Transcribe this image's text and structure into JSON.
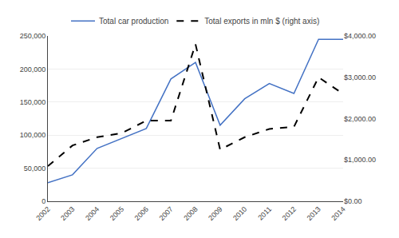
{
  "chart_data": {
    "type": "line",
    "x": [
      2002,
      2003,
      2004,
      2005,
      2006,
      2007,
      2008,
      2009,
      2010,
      2011,
      2012,
      2013,
      2014
    ],
    "xlim": [
      2002,
      2014
    ],
    "xticks": [
      2002,
      2003,
      2004,
      2005,
      2006,
      2007,
      2008,
      2009,
      2010,
      2011,
      2012,
      2013,
      2014
    ],
    "series": [
      {
        "name": "Total car production",
        "color": "#4472C4",
        "line_style": "solid",
        "values": [
          28000,
          40000,
          80000,
          95000,
          110000,
          185000,
          210000,
          115000,
          155000,
          178000,
          163000,
          245000,
          245000
        ]
      },
      {
        "name": "Total exports in mln $ (right axis)",
        "color": "#000000",
        "line_style": "dashed",
        "axis": "y2",
        "values": [
          850,
          1350,
          1550,
          1650,
          1950,
          1950,
          3800,
          1250,
          1550,
          1750,
          1800,
          3000,
          2600
        ]
      }
    ],
    "ylim": [
      0,
      250000
    ],
    "yticks": [
      0,
      {
        "value": 50000,
        "label": "50,000"
      },
      {
        "value": 100000,
        "label": "100,000"
      },
      {
        "value": 150000,
        "label": "150,000"
      },
      {
        "value": 200000,
        "label": "200,000"
      },
      {
        "value": 250000,
        "label": "250,000"
      }
    ],
    "y2lim": [
      0,
      4000
    ],
    "y2ticks": [
      {
        "value": 0,
        "label": "$0.00"
      },
      {
        "value": 1000,
        "label": "$1,000.00"
      },
      {
        "value": 2000,
        "label": "$2,000.00"
      },
      {
        "value": 3000,
        "label": "$3,000.00"
      },
      {
        "value": 4000,
        "label": "$4,000.00"
      }
    ],
    "grid": true,
    "legend": "top"
  }
}
